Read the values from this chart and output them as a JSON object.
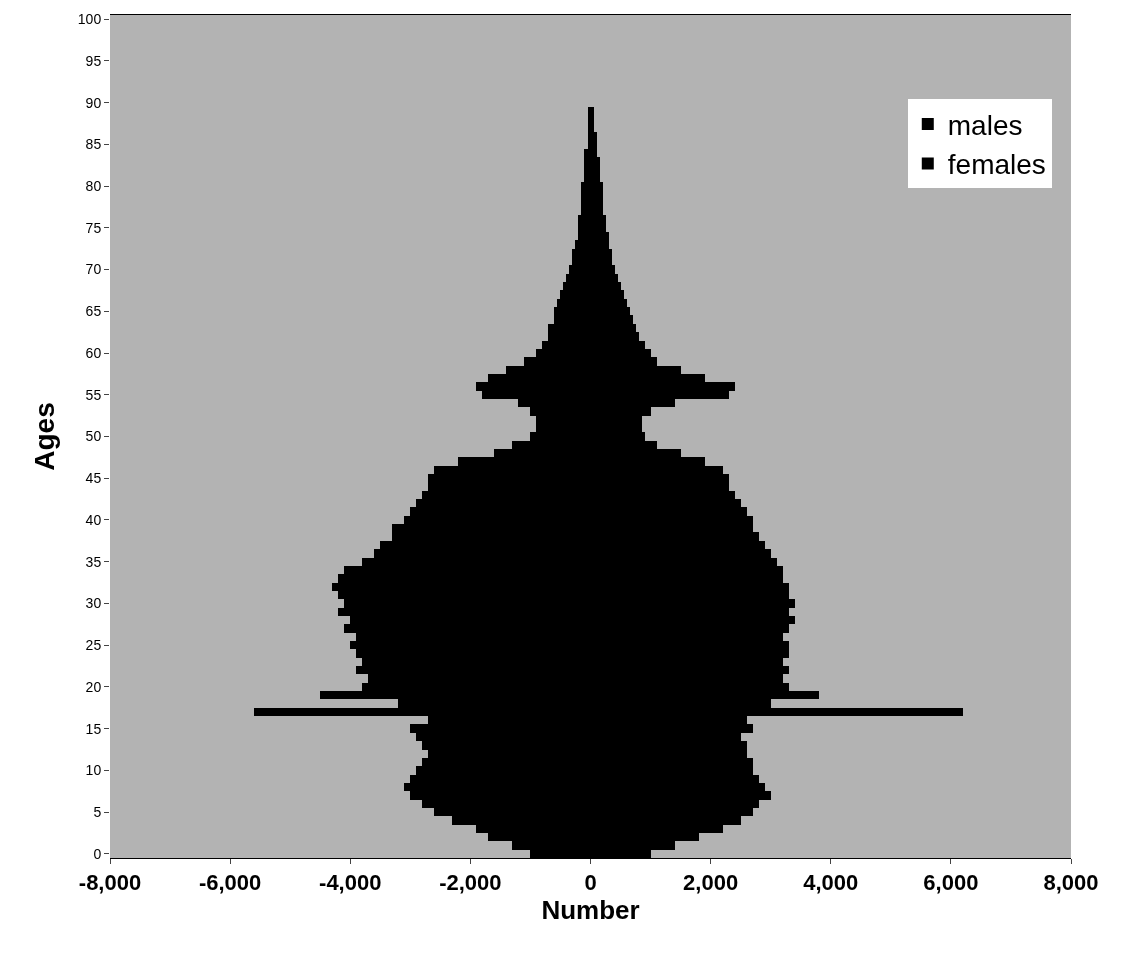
{
  "chart_data": {
    "type": "bar",
    "orientation": "horizontal",
    "xlabel": "Number",
    "ylabel": "Ages",
    "categories": [
      "100",
      null,
      null,
      null,
      null,
      "95",
      null,
      null,
      null,
      null,
      "90",
      null,
      null,
      null,
      null,
      "85",
      null,
      null,
      null,
      null,
      "80",
      null,
      null,
      null,
      null,
      "75",
      null,
      null,
      null,
      null,
      "70",
      null,
      null,
      null,
      null,
      "65",
      null,
      null,
      null,
      null,
      "60",
      null,
      null,
      null,
      null,
      "55",
      null,
      null,
      null,
      null,
      "50",
      null,
      null,
      null,
      null,
      "45",
      null,
      null,
      null,
      null,
      "40",
      null,
      null,
      null,
      null,
      "35",
      null,
      null,
      null,
      null,
      "30",
      null,
      null,
      null,
      null,
      "25",
      null,
      null,
      null,
      null,
      "20",
      null,
      null,
      null,
      null,
      "15",
      null,
      null,
      null,
      null,
      "10",
      null,
      null,
      null,
      null,
      "5",
      null,
      null,
      null,
      null,
      "0"
    ],
    "series": [
      {
        "name": "males",
        "color": "#000000",
        "values": [
          0,
          0,
          0,
          0,
          0,
          0,
          0,
          0,
          0,
          0,
          0,
          -50,
          -50,
          -50,
          -50,
          -50,
          -100,
          -100,
          -100,
          -100,
          -150,
          -150,
          -150,
          -150,
          -200,
          -200,
          -200,
          -250,
          -300,
          -300,
          -350,
          -400,
          -450,
          -500,
          -550,
          -600,
          -600,
          -700,
          -700,
          -800,
          -900,
          -1100,
          -1400,
          -1700,
          -1900,
          -1800,
          -1200,
          -1000,
          -900,
          -900,
          -1000,
          -1300,
          -1600,
          -2200,
          -2600,
          -2700,
          -2700,
          -2800,
          -2900,
          -3000,
          -3100,
          -3300,
          -3300,
          -3500,
          -3600,
          -3800,
          -4100,
          -4200,
          -4300,
          -4200,
          -4100,
          -4200,
          -4000,
          -4100,
          -3900,
          -4000,
          -3900,
          -3800,
          -3900,
          -3700,
          -3800,
          -4500,
          -3200,
          -5600,
          -2700,
          -3000,
          -2900,
          -2800,
          -2700,
          -2800,
          -2900,
          -3000,
          -3100,
          -3000,
          -2800,
          -2600,
          -2300,
          -1900,
          -1700,
          -1300,
          -1000
        ]
      },
      {
        "name": "females",
        "color": "#000000",
        "values": [
          0,
          0,
          0,
          0,
          0,
          0,
          0,
          0,
          0,
          0,
          0,
          50,
          50,
          50,
          100,
          100,
          100,
          150,
          150,
          150,
          200,
          200,
          200,
          200,
          250,
          250,
          300,
          300,
          350,
          350,
          400,
          450,
          500,
          550,
          600,
          650,
          700,
          750,
          800,
          900,
          1000,
          1100,
          1500,
          1900,
          2400,
          2300,
          1400,
          1000,
          850,
          850,
          900,
          1100,
          1500,
          1900,
          2200,
          2300,
          2300,
          2400,
          2500,
          2600,
          2700,
          2700,
          2800,
          2900,
          3000,
          3100,
          3200,
          3200,
          3300,
          3300,
          3400,
          3300,
          3400,
          3300,
          3200,
          3300,
          3300,
          3200,
          3300,
          3200,
          3300,
          3800,
          3000,
          6200,
          2600,
          2700,
          2500,
          2600,
          2600,
          2700,
          2700,
          2800,
          2900,
          3000,
          2800,
          2700,
          2500,
          2200,
          1800,
          1400,
          1000
        ]
      }
    ],
    "xlim": [
      -8000,
      8000
    ],
    "xticks": [
      {
        "value": -8000,
        "label": "-8,000"
      },
      {
        "value": -6000,
        "label": "-6,000"
      },
      {
        "value": -4000,
        "label": "-4,000"
      },
      {
        "value": -2000,
        "label": "-2,000"
      },
      0,
      {
        "value": 2000,
        "label": "2,000"
      },
      {
        "value": 4000,
        "label": "4,000"
      },
      {
        "value": 6000,
        "label": "6,000"
      },
      {
        "value": 8000,
        "label": "8,000"
      }
    ],
    "stacked": true,
    "grid": false,
    "legend": "top right"
  }
}
